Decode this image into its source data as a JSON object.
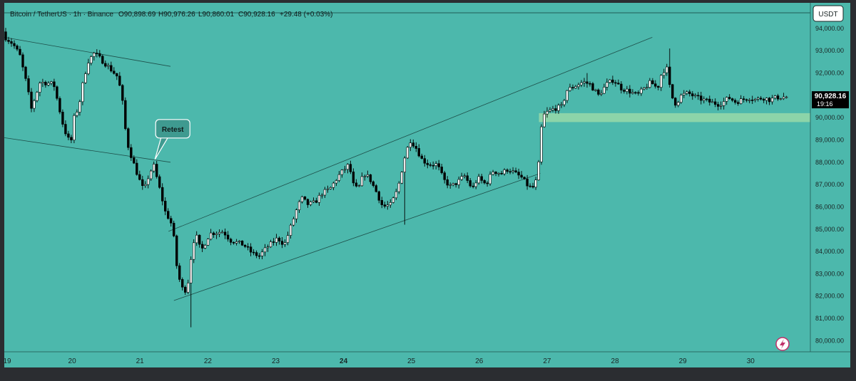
{
  "colors": {
    "plot_bg": "#4cb8ac",
    "frame": "#2b2d31",
    "candle_up_body": "#ffffff",
    "candle_down_body": "#000000",
    "candle_border": "#000000",
    "support_zone": "#98d8a8",
    "current_price_bg": "#000000",
    "trendline": "#1e4f4a",
    "callout_bg": "#3f9a90"
  },
  "legend": {
    "symbol": "Bitcoin / TetherUS · 1h · Binance",
    "open": "O90,898.69",
    "high": "H90,976.26",
    "low": "L90,860.01",
    "close": "C90,928.16",
    "change": "+29.48 (+0.03%)"
  },
  "currency_button": "USDT",
  "current_price": {
    "value": "90,928.16",
    "countdown": "19:16"
  },
  "annotation": {
    "text": "Retest"
  },
  "chart_data": {
    "type": "candlestick",
    "symbol": "Bitcoin / TetherUS",
    "interval": "1h",
    "exchange": "Binance",
    "y_ticks": [
      "94,000.00",
      "93,000.00",
      "92,000.00",
      "91,000.00",
      "90,000.00",
      "89,000.00",
      "88,000.00",
      "87,000.00",
      "86,000.00",
      "85,000.00",
      "84,000.00",
      "83,000.00",
      "82,000.00",
      "81,000.00",
      "80,000.00"
    ],
    "y_tick_values": [
      94000,
      93000,
      92000,
      91000,
      90000,
      89000,
      88000,
      87000,
      86000,
      85000,
      84000,
      83000,
      82000,
      81000,
      80000
    ],
    "ylim": [
      79500,
      94700
    ],
    "x_ticks": [
      "19",
      "20",
      "21",
      "22",
      "23",
      "24",
      "25",
      "26",
      "27",
      "28",
      "29",
      "30"
    ],
    "x_tick_values": [
      19,
      20,
      21,
      22,
      23,
      24,
      25,
      26,
      27,
      28,
      29,
      30
    ],
    "xlim": [
      19.0,
      30.88
    ],
    "candle_width_days": 0.042,
    "ohlc_waypoints": [
      [
        19.0,
        93700
      ],
      [
        19.15,
        93300
      ],
      [
        19.25,
        92800
      ],
      [
        19.35,
        91500
      ],
      [
        19.42,
        90400
      ],
      [
        19.55,
        91600
      ],
      [
        19.75,
        91500
      ],
      [
        19.9,
        89500
      ],
      [
        20.0,
        88800
      ],
      [
        20.05,
        90000
      ],
      [
        20.12,
        90500
      ],
      [
        20.17,
        91400
      ],
      [
        20.25,
        92500
      ],
      [
        20.35,
        92900
      ],
      [
        20.45,
        92600
      ],
      [
        20.55,
        92300
      ],
      [
        20.7,
        91800
      ],
      [
        20.78,
        90400
      ],
      [
        20.82,
        89000
      ],
      [
        20.9,
        88200
      ],
      [
        21.0,
        87300
      ],
      [
        21.08,
        86700
      ],
      [
        21.14,
        87300
      ],
      [
        21.22,
        87900
      ],
      [
        21.32,
        86700
      ],
      [
        21.4,
        85700
      ],
      [
        21.47,
        85400
      ],
      [
        21.52,
        84600
      ],
      [
        21.56,
        83400
      ],
      [
        21.62,
        82500
      ],
      [
        21.67,
        82200
      ],
      [
        21.72,
        82400
      ],
      [
        21.8,
        84400
      ],
      [
        21.85,
        84700
      ],
      [
        21.92,
        84000
      ],
      [
        22.05,
        84800
      ],
      [
        22.25,
        84900
      ],
      [
        22.35,
        84500
      ],
      [
        22.55,
        84300
      ],
      [
        22.68,
        83900
      ],
      [
        22.78,
        83800
      ],
      [
        22.9,
        84200
      ],
      [
        23.05,
        84600
      ],
      [
        23.15,
        84300
      ],
      [
        23.22,
        84900
      ],
      [
        23.32,
        85800
      ],
      [
        23.4,
        86400
      ],
      [
        23.5,
        86100
      ],
      [
        23.6,
        86200
      ],
      [
        23.7,
        86600
      ],
      [
        23.82,
        86800
      ],
      [
        23.95,
        87400
      ],
      [
        24.1,
        87900
      ],
      [
        24.18,
        86800
      ],
      [
        24.25,
        86900
      ],
      [
        24.32,
        87500
      ],
      [
        24.4,
        87300
      ],
      [
        24.5,
        86700
      ],
      [
        24.6,
        86000
      ],
      [
        24.72,
        86100
      ],
      [
        24.82,
        86800
      ],
      [
        24.92,
        88200
      ],
      [
        25.0,
        89000
      ],
      [
        25.08,
        88700
      ],
      [
        25.18,
        88100
      ],
      [
        25.28,
        87900
      ],
      [
        25.4,
        87900
      ],
      [
        25.5,
        87200
      ],
      [
        25.6,
        86900
      ],
      [
        25.7,
        87100
      ],
      [
        25.8,
        87400
      ],
      [
        25.92,
        86800
      ],
      [
        26.0,
        87300
      ],
      [
        26.12,
        87000
      ],
      [
        26.22,
        87600
      ],
      [
        26.35,
        87500
      ],
      [
        26.45,
        87700
      ],
      [
        26.55,
        87500
      ],
      [
        26.65,
        87300
      ],
      [
        26.72,
        87000
      ],
      [
        26.8,
        86800
      ],
      [
        26.88,
        87300
      ],
      [
        26.95,
        90000
      ],
      [
        27.0,
        90200
      ],
      [
        27.12,
        90400
      ],
      [
        27.25,
        90500
      ],
      [
        27.3,
        91200
      ],
      [
        27.42,
        91400
      ],
      [
        27.55,
        91600
      ],
      [
        27.65,
        91500
      ],
      [
        27.78,
        91000
      ],
      [
        27.9,
        91500
      ],
      [
        28.0,
        91700
      ],
      [
        28.12,
        91300
      ],
      [
        28.22,
        91200
      ],
      [
        28.35,
        91000
      ],
      [
        28.45,
        91300
      ],
      [
        28.55,
        91600
      ],
      [
        28.65,
        91300
      ],
      [
        28.7,
        91900
      ],
      [
        28.78,
        92300
      ],
      [
        28.85,
        91000
      ],
      [
        28.92,
        90600
      ],
      [
        29.0,
        91000
      ],
      [
        29.1,
        91100
      ],
      [
        29.22,
        90900
      ],
      [
        29.32,
        90800
      ],
      [
        29.42,
        90700
      ],
      [
        29.55,
        90600
      ],
      [
        29.62,
        90700
      ],
      [
        29.7,
        90900
      ],
      [
        29.8,
        90700
      ],
      [
        29.9,
        90800
      ],
      [
        30.0,
        90900
      ],
      [
        30.1,
        90800
      ],
      [
        30.2,
        90900
      ],
      [
        30.3,
        90800
      ],
      [
        30.4,
        90900
      ],
      [
        30.52,
        90928
      ]
    ],
    "last_candle": {
      "open": 90898.69,
      "high": 90976.26,
      "low": 90860.01,
      "close": 90928.16
    },
    "support_zone": {
      "x_from": 26.88,
      "x_to": 30.88,
      "y_low": 89800,
      "y_high": 90200
    },
    "trendlines": [
      {
        "x1": 19.0,
        "y1": 93600,
        "x2": 21.45,
        "y2": 92300
      },
      {
        "x1": 19.0,
        "y1": 89100,
        "x2": 21.45,
        "y2": 88000
      },
      {
        "x1": 21.42,
        "y1": 84900,
        "x2": 28.55,
        "y2": 93600
      },
      {
        "x1": 21.5,
        "y1": 81800,
        "x2": 26.9,
        "y2": 87500
      }
    ],
    "callout": {
      "text": "Retest",
      "x": 21.22,
      "y": 88000
    },
    "grid": false,
    "legend_position": "top-left"
  }
}
